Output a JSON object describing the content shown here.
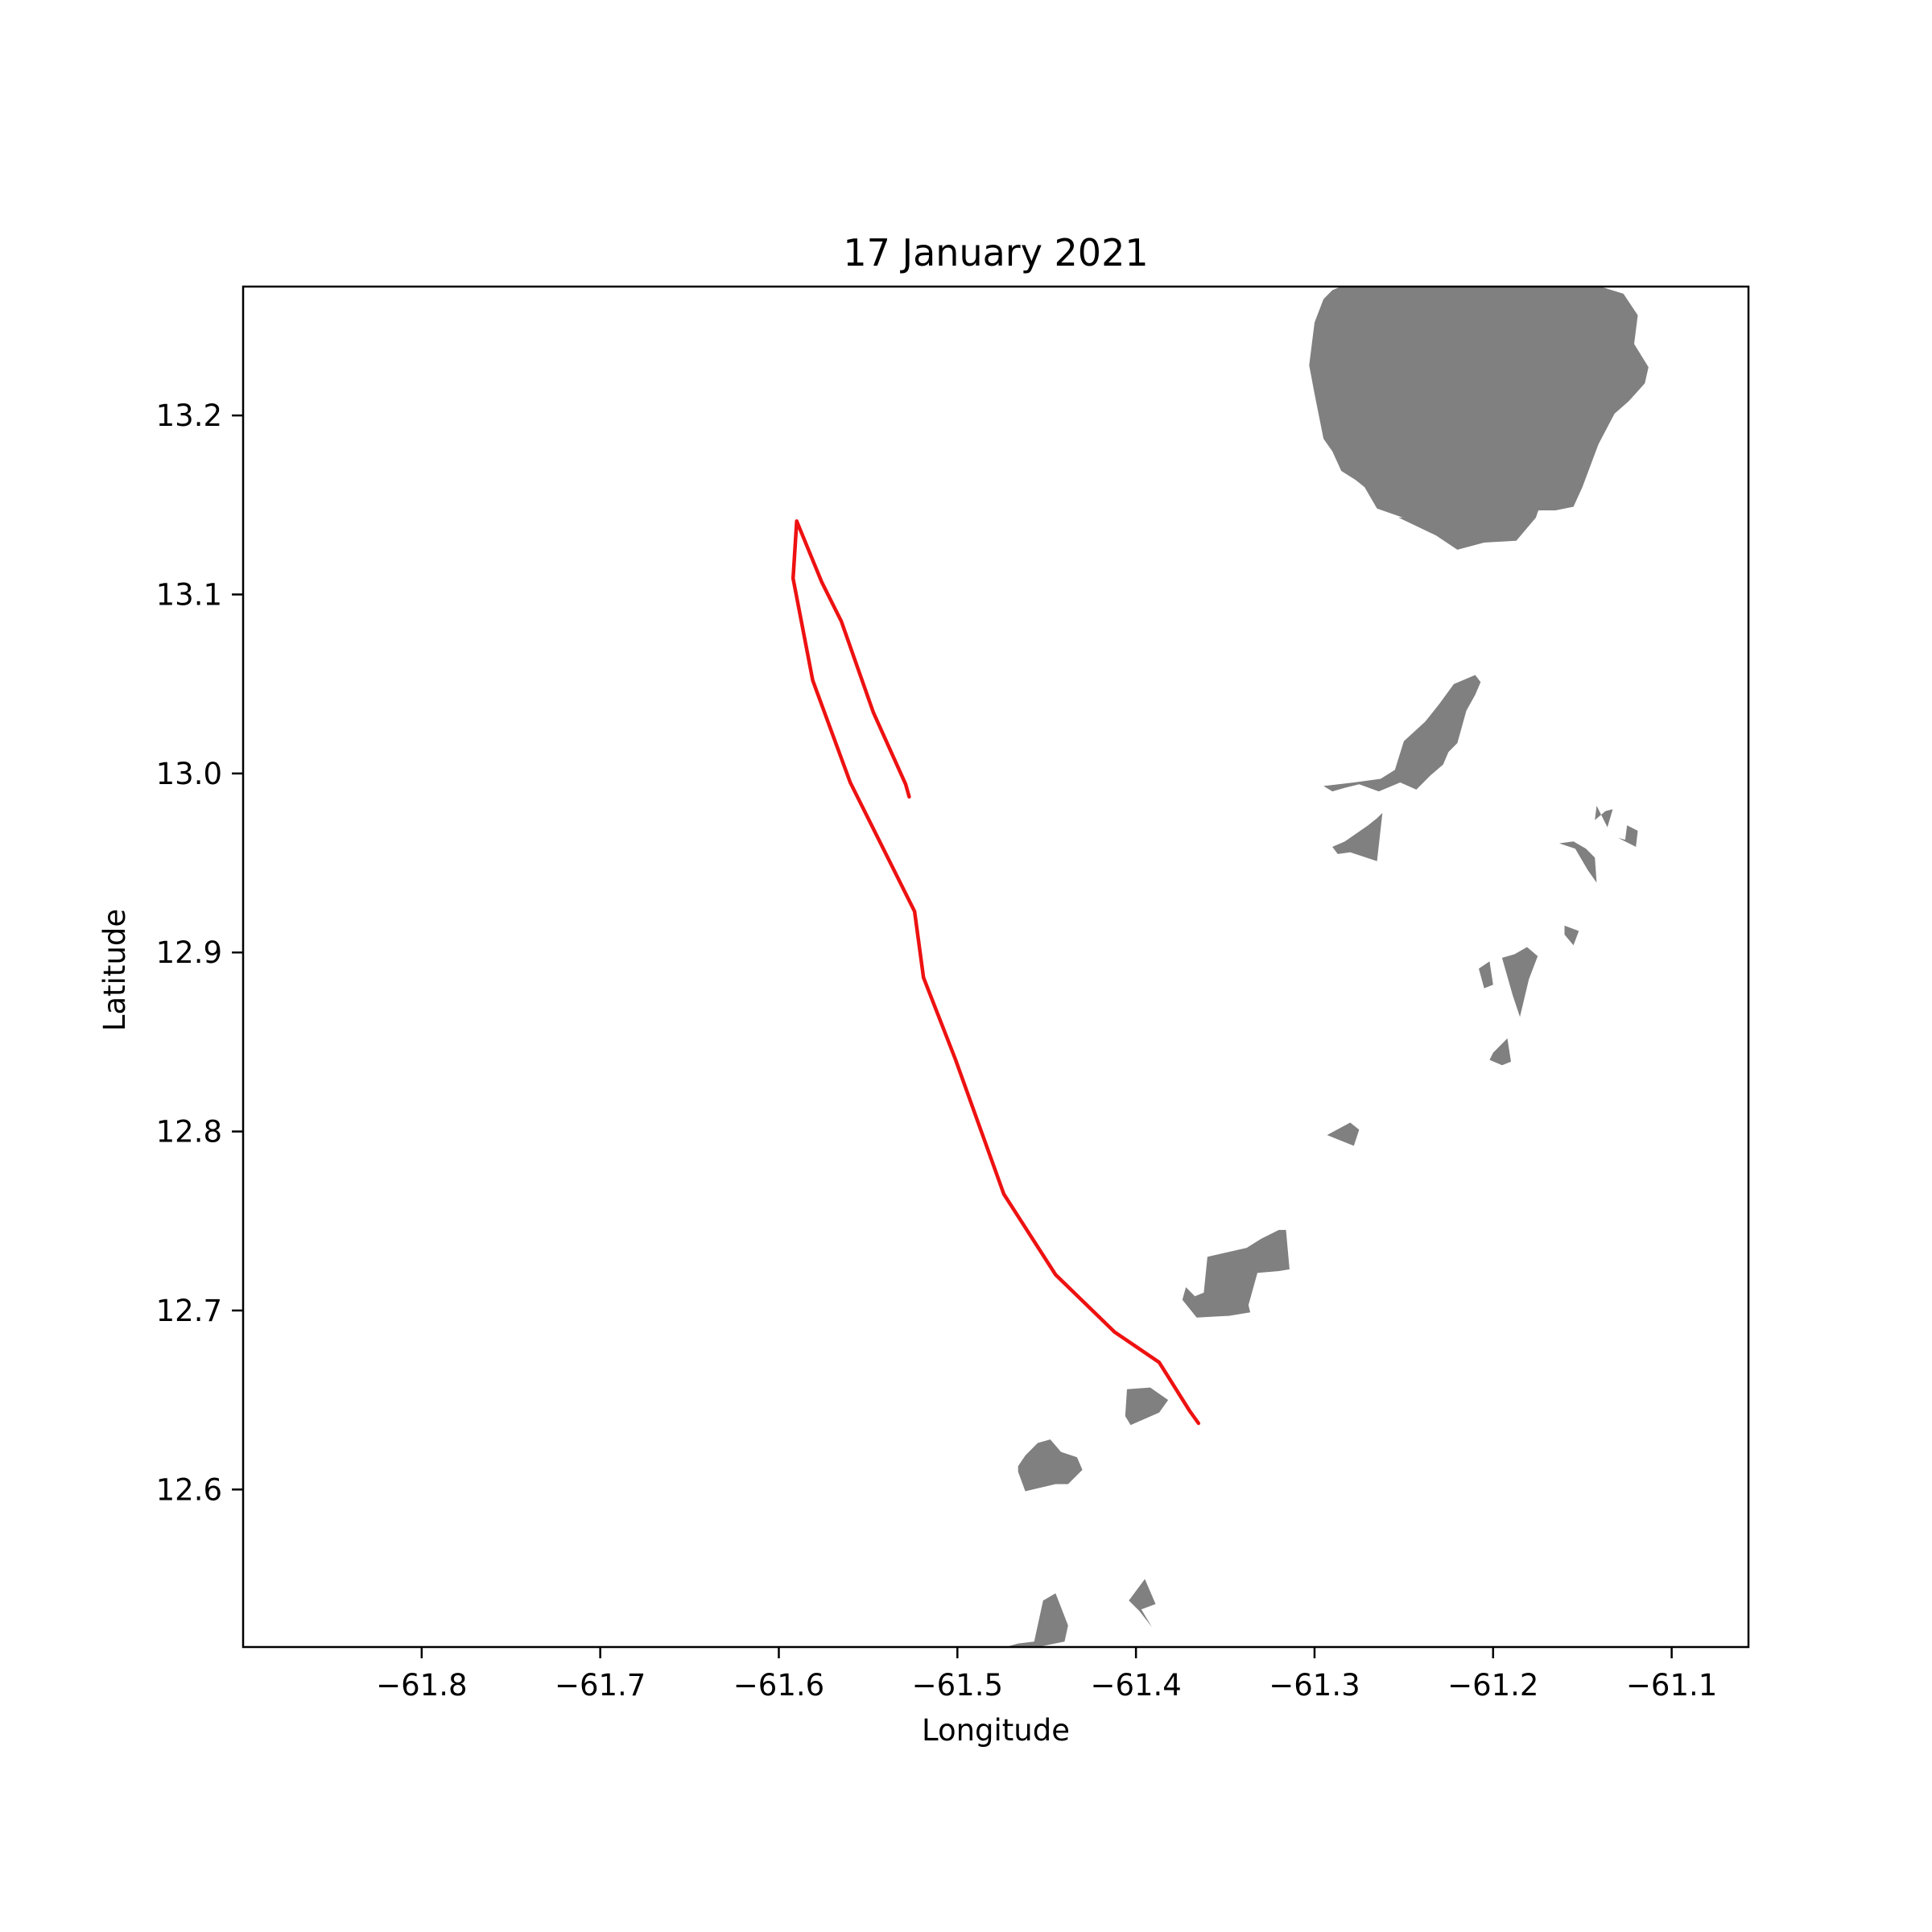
{
  "chart_data": {
    "type": "map-track",
    "title": "17 January 2021",
    "xlabel": "Longitude",
    "ylabel": "Latitude",
    "xlim": [
      -61.9,
      -61.057
    ],
    "ylim": [
      12.512,
      13.272
    ],
    "xticks": [
      -61.8,
      -61.7,
      -61.6,
      -61.5,
      -61.4,
      -61.3,
      -61.2,
      -61.1
    ],
    "xtick_labels": [
      "−61.8",
      "−61.7",
      "−61.6",
      "−61.5",
      "−61.4",
      "−61.3",
      "−61.2",
      "−61.1"
    ],
    "yticks": [
      12.6,
      12.7,
      12.8,
      12.9,
      13.0,
      13.1,
      13.2
    ],
    "ytick_labels": [
      "12.6",
      "12.7",
      "12.8",
      "12.9",
      "13.0",
      "13.1",
      "13.2"
    ],
    "track": {
      "color": "#ee1111",
      "lon": [
        -61.527,
        -61.529,
        -61.547,
        -61.565,
        -61.576,
        -61.59,
        -61.592,
        -61.581,
        -61.56,
        -61.524,
        -61.519,
        -61.501,
        -61.474,
        -61.445,
        -61.412,
        -61.387,
        -61.37,
        -61.365
      ],
      "lat": [
        12.987,
        12.994,
        13.034,
        13.085,
        13.107,
        13.141,
        13.109,
        13.052,
        12.995,
        12.923,
        12.886,
        12.84,
        12.765,
        12.72,
        12.688,
        12.671,
        12.644,
        12.637
      ]
    },
    "land": {
      "color": "#808080",
      "polygons": [
        {
          "lon": [
            -61.23,
            -61.215,
            -61.185,
            -61.14,
            -61.127,
            -61.119,
            -61.121,
            -61.113,
            -61.115,
            -61.124,
            -61.132,
            -61.141,
            -61.15,
            -61.155,
            -61.165,
            -61.175,
            -61.19,
            -61.21,
            -61.232,
            -61.245,
            -61.265,
            -61.272,
            -61.277,
            -61.285,
            -61.29,
            -61.295,
            -61.3,
            -61.303,
            -61.3,
            -61.295,
            -61.295,
            -61.29,
            -61.285,
            -61.275
          ],
          "lat": [
            13.272,
            13.272,
            13.272,
            13.272,
            13.268,
            13.256,
            13.24,
            13.227,
            13.218,
            13.208,
            13.201,
            13.184,
            13.16,
            13.149,
            13.147,
            13.147,
            13.149,
            13.143,
            13.141,
            13.141,
            13.148,
            13.16,
            13.164,
            13.169,
            13.18,
            13.187,
            13.212,
            13.228,
            13.252,
            13.265,
            13.265,
            13.27,
            13.272,
            13.272
          ]
        },
        {
          "lon": [
            -61.253,
            -61.24,
            -61.225,
            -61.217,
            -61.2,
            -61.192,
            -61.186,
            -61.181,
            -61.176,
            -61.17,
            -61.175,
            -61.176,
            -61.187,
            -61.205,
            -61.22,
            -61.232
          ],
          "lat": [
            13.143,
            13.143,
            13.15,
            13.155,
            13.161,
            13.163,
            13.163,
            13.162,
            13.159,
            13.157,
            13.146,
            13.143,
            13.13,
            13.129,
            13.125,
            13.133
          ]
        },
        {
          "lon": [
            -61.295,
            -61.278,
            -61.263,
            -61.255,
            -61.25,
            -61.238,
            -61.23,
            -61.222,
            -61.21,
            -61.207,
            -61.21,
            -61.215,
            -61.22,
            -61.225,
            -61.228,
            -61.235,
            -61.243,
            -61.252,
            -61.264,
            -61.275,
            -61.283,
            -61.29,
            -61.295
          ],
          "lat": [
            12.993,
            12.995,
            12.997,
            13.002,
            13.018,
            13.029,
            13.039,
            13.05,
            13.055,
            13.051,
            13.044,
            13.035,
            13.017,
            13.012,
            13.005,
            12.999,
            12.991,
            12.995,
            12.99,
            12.994,
            12.992,
            12.99,
            12.993
          ]
        },
        {
          "lon": [
            -61.27,
            -61.265,
            -61.262,
            -61.265,
            -61.28,
            -61.287,
            -61.29,
            -61.283
          ],
          "lat": [
            12.971,
            12.975,
            12.978,
            12.951,
            12.956,
            12.955,
            12.959,
            12.962
          ]
        },
        {
          "lon": [
            -61.136,
            -61.133,
            -61.137,
            -61.143,
            -61.142
          ],
          "lat": [
            12.97,
            12.98,
            12.979,
            12.974,
            12.982
          ]
        },
        {
          "lon": [
            -61.13,
            -61.12,
            -61.119,
            -61.125,
            -61.126
          ],
          "lat": [
            12.964,
            12.959,
            12.968,
            12.971,
            12.963
          ]
        },
        {
          "lon": [
            -61.163,
            -61.154,
            -61.147,
            -61.142,
            -61.143,
            -61.148,
            -61.155
          ],
          "lat": [
            12.961,
            12.958,
            12.946,
            12.939,
            12.953,
            12.958,
            12.962
          ]
        },
        {
          "lon": [
            -61.16,
            -61.152,
            -61.155,
            -61.16
          ],
          "lat": [
            12.915,
            12.912,
            12.904,
            12.91
          ]
        },
        {
          "lon": [
            -61.188,
            -61.181,
            -61.175,
            -61.18,
            -61.185,
            -61.189,
            -61.193,
            -61.195,
            -61.188
          ],
          "lat": [
            12.899,
            12.903,
            12.898,
            12.885,
            12.864,
            12.876,
            12.89,
            12.897,
            12.899
          ]
        },
        {
          "lon": [
            -61.208,
            -61.202,
            -61.2,
            -61.205
          ],
          "lat": [
            12.891,
            12.895,
            12.882,
            12.88
          ]
        },
        {
          "lon": [
            -61.2,
            -61.192,
            -61.19,
            -61.195,
            -61.202
          ],
          "lat": [
            12.844,
            12.852,
            12.839,
            12.837,
            12.84
          ]
        },
        {
          "lon": [
            -61.293,
            -61.28,
            -61.275,
            -61.278,
            -61.288
          ],
          "lat": [
            12.798,
            12.805,
            12.801,
            12.792,
            12.796
          ]
        },
        {
          "lon": [
            -61.367,
            -61.362,
            -61.36,
            -61.338,
            -61.33,
            -61.32,
            -61.316,
            -61.314,
            -61.32,
            -61.332,
            -61.337,
            -61.336,
            -61.348,
            -61.366,
            -61.374,
            -61.372
          ],
          "lat": [
            12.708,
            12.71,
            12.73,
            12.735,
            12.74,
            12.745,
            12.745,
            12.723,
            12.722,
            12.721,
            12.703,
            12.699,
            12.697,
            12.696,
            12.706,
            12.713
          ]
        },
        {
          "lon": [
            -61.382,
            -61.387,
            -61.403,
            -61.406,
            -61.405,
            -61.392
          ],
          "lat": [
            12.65,
            12.643,
            12.636,
            12.641,
            12.656,
            12.657
          ]
        },
        {
          "lon": [
            -61.466,
            -61.462,
            -61.455,
            -61.448,
            -61.442,
            -61.433,
            -61.43,
            -61.438,
            -61.445,
            -61.462,
            -61.466
          ],
          "lat": [
            12.613,
            12.619,
            12.626,
            12.628,
            12.621,
            12.618,
            12.611,
            12.603,
            12.603,
            12.599,
            12.61
          ]
        },
        {
          "lon": [
            -61.397,
            -61.389,
            -61.395,
            -61.404,
            -61.398,
            -61.391
          ],
          "lat": [
            12.533,
            12.536,
            12.55,
            12.538,
            12.532,
            12.523
          ]
        },
        {
          "lon": [
            -61.473,
            -61.466,
            -61.457,
            -61.452,
            -61.445,
            -61.438,
            -61.44,
            -61.455,
            -61.462
          ],
          "lat": [
            12.512,
            12.514,
            12.515,
            12.538,
            12.542,
            12.524,
            12.515,
            12.512,
            12.512
          ]
        }
      ]
    }
  }
}
